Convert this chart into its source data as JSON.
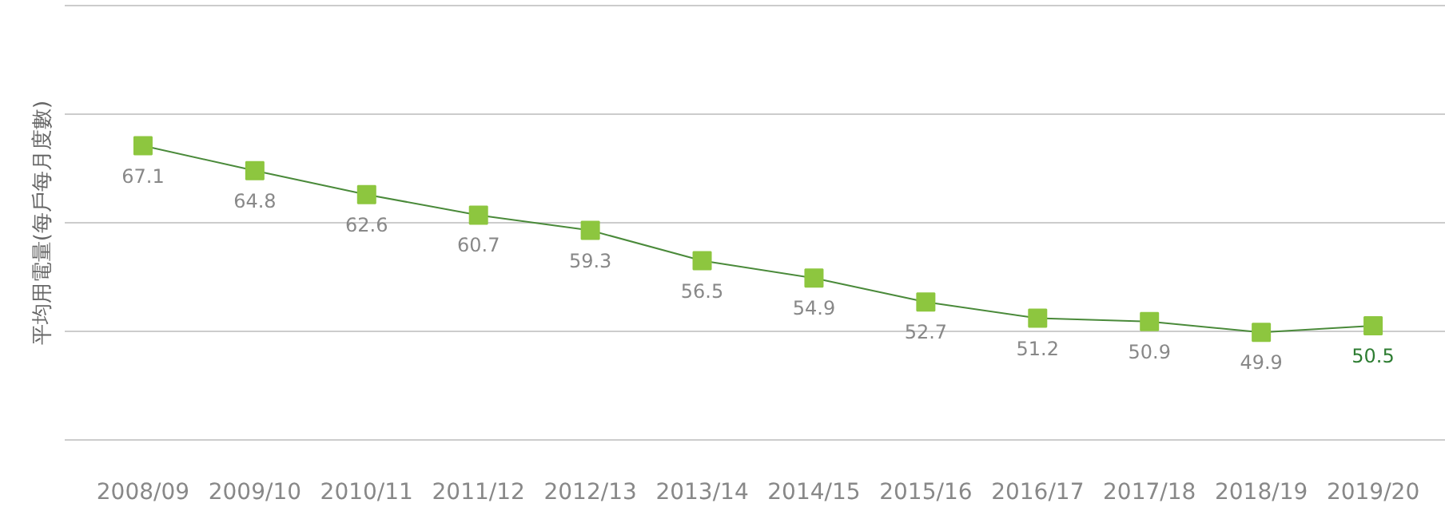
{
  "chart_data": {
    "type": "line",
    "ylabel": "平均用電量(每戶每月度數)",
    "categories": [
      "2008/09",
      "2009/10",
      "2010/11",
      "2011/12",
      "2012/13",
      "2013/14",
      "2014/15",
      "2015/16",
      "2016/17",
      "2017/18",
      "2018/19",
      "2019/20"
    ],
    "series": [
      {
        "color": "#4a8a3a",
        "values": [
          67.1,
          64.8,
          62.6,
          60.7,
          59.3,
          56.5,
          54.9,
          52.7,
          51.2,
          50.9,
          49.9,
          50.5
        ]
      }
    ],
    "yticks": [
      {
        "value": 40,
        "label": null
      },
      {
        "value": 50,
        "label": null
      },
      {
        "value": 60,
        "label": null
      },
      {
        "value": 70,
        "label": null
      },
      {
        "value": 80,
        "label": null
      }
    ],
    "ylim": [
      40,
      80
    ],
    "tick_labels": "x",
    "grid": "y",
    "marker": "square",
    "line_style": "solid",
    "data_labels": true
  }
}
